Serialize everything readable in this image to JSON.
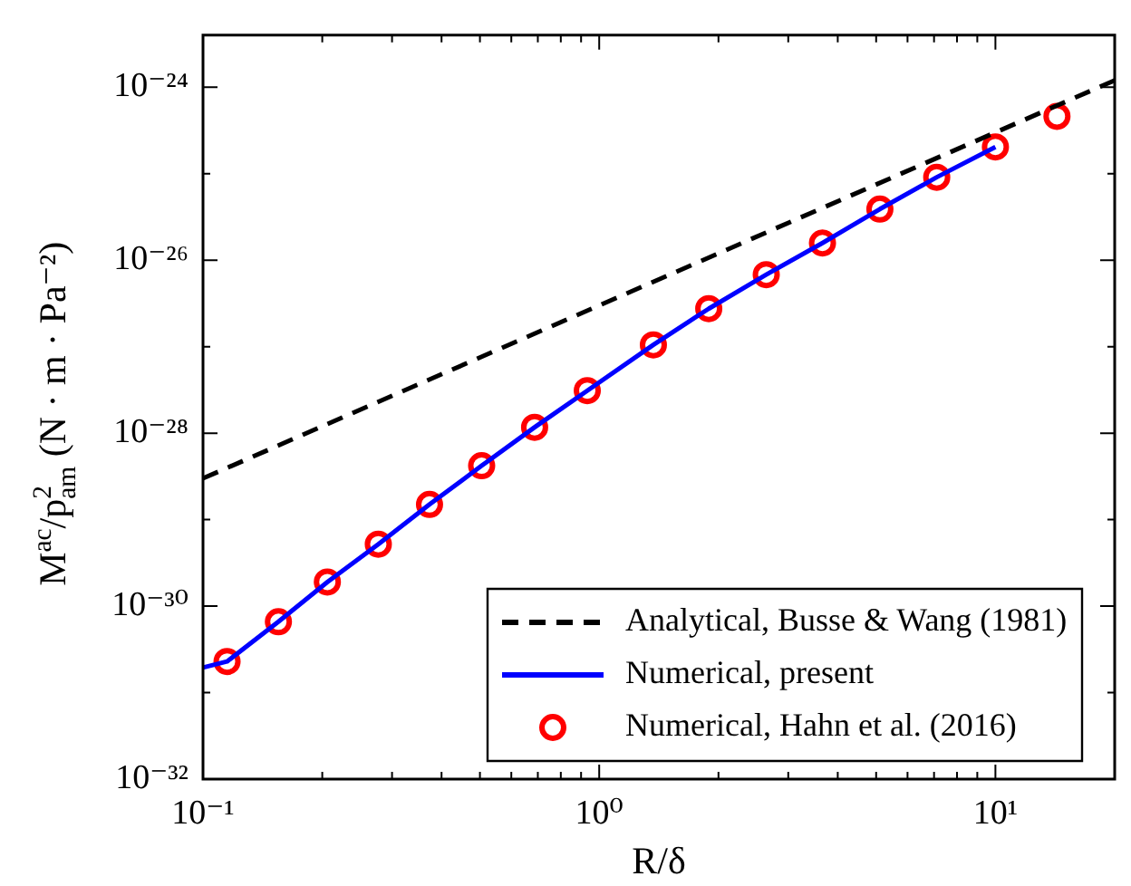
{
  "chart_data": {
    "type": "line",
    "xlabel": "R/δ",
    "ylabel": "M$^{ac}$/p$_{am}$$^{2}$ (N · m · Pa⁻²)",
    "log": "xy",
    "xlim": [
      0.1,
      20
    ],
    "ylim": [
      1e-32,
      4e-24
    ],
    "xticks": [
      {
        "value": 0.1,
        "label": "10⁻¹"
      },
      {
        "value": 0.2,
        "label": null
      },
      {
        "value": 0.3,
        "label": null
      },
      {
        "value": 0.4,
        "label": null
      },
      {
        "value": 0.5,
        "label": null
      },
      {
        "value": 0.6,
        "label": null
      },
      {
        "value": 0.7,
        "label": null
      },
      {
        "value": 0.8,
        "label": null
      },
      {
        "value": 0.9,
        "label": null
      },
      {
        "value": 1,
        "label": "10⁰"
      },
      {
        "value": 2,
        "label": null
      },
      {
        "value": 3,
        "label": null
      },
      {
        "value": 4,
        "label": null
      },
      {
        "value": 5,
        "label": null
      },
      {
        "value": 6,
        "label": null
      },
      {
        "value": 7,
        "label": null
      },
      {
        "value": 8,
        "label": null
      },
      {
        "value": 9,
        "label": null
      },
      {
        "value": 10,
        "label": "10¹"
      }
    ],
    "yticks": [
      {
        "value": 1e-32,
        "label": "10⁻³²"
      },
      {
        "value": 1e-31,
        "label": null
      },
      {
        "value": 1e-30,
        "label": "10⁻³⁰"
      },
      {
        "value": 1e-29,
        "label": null
      },
      {
        "value": 1e-28,
        "label": "10⁻²⁸"
      },
      {
        "value": 1e-27,
        "label": null
      },
      {
        "value": 1e-26,
        "label": "10⁻²⁶"
      },
      {
        "value": 1e-25,
        "label": null
      },
      {
        "value": 1e-24,
        "label": "10⁻²⁴"
      }
    ],
    "legend": "bottom right",
    "series": [
      {
        "name": "Analytical, Busse & Wang (1981)",
        "color": "#000000",
        "line_style": "dashed",
        "marker": "none",
        "x": [
          0.1,
          20
        ],
        "values": [
          3e-29,
          1.2e-24
        ]
      },
      {
        "name": "Numerical, present",
        "color": "#0000ff",
        "line_style": "solid",
        "marker": "none",
        "x": [
          0.1,
          0.115,
          0.155,
          0.206,
          0.277,
          0.373,
          0.505,
          0.687,
          0.933,
          1.37,
          1.89,
          2.64,
          3.66,
          5.11,
          7.11,
          10.0
        ],
        "values": [
          1.95e-31,
          2.29e-31,
          6.6e-31,
          1.9e-30,
          5.2e-30,
          1.5e-29,
          4.2e-29,
          1.17e-28,
          3.1e-28,
          1.05e-27,
          2.75e-27,
          6.8e-27,
          1.58e-26,
          3.9e-26,
          9.1e-26,
          2.04e-25
        ]
      },
      {
        "name": "Numerical, Hahn et al. (2016)",
        "type": "scatter",
        "color": "#ff0000",
        "marker": "circle",
        "x": [
          0.115,
          0.155,
          0.206,
          0.277,
          0.373,
          0.505,
          0.687,
          0.933,
          1.37,
          1.89,
          2.64,
          3.66,
          5.11,
          7.11,
          10.0,
          14.3
        ],
        "values": [
          2.29e-31,
          6.6e-31,
          1.9e-30,
          5.2e-30,
          1.5e-29,
          4.2e-29,
          1.17e-28,
          3.1e-28,
          1.05e-27,
          2.75e-27,
          6.8e-27,
          1.58e-26,
          3.9e-26,
          9.1e-26,
          2.04e-25,
          4.6e-25
        ]
      }
    ]
  }
}
